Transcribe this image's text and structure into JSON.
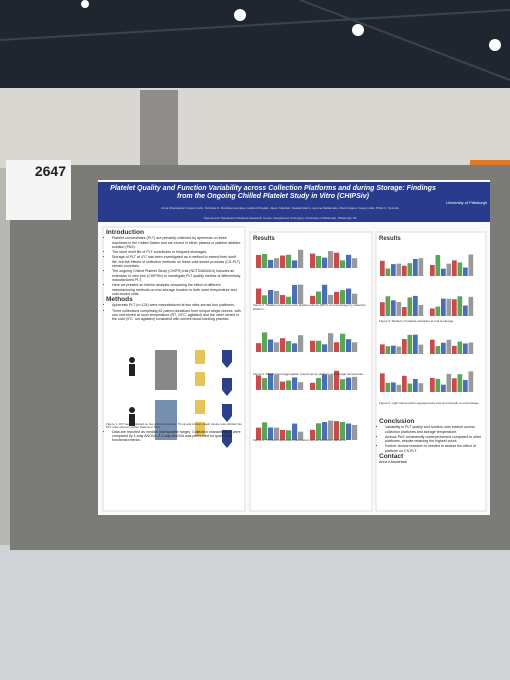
{
  "sign": {
    "number": "2647"
  },
  "poster": {
    "title": "Platelet Quality and Function Variability across Collection Platforms and during Storage: Findings from the Ongoing Chilled Platelet Study in Vitro (CHIPSiv)",
    "institution": "University of Pittsburgh",
    "authors": "Anna Khandelwal, Kaiyan Kahn, Nicholas S. Ruzicka-Gonzales, Latifa Al Khalaki, Jason Sheinkin, Natalia Martin, Jerome Maldonado, Mark Cappel, Casey Holst, Philip C. Spinella",
    "affiliations": "Trauma and Transfusion Medicine Research Center, Department of Surgery, University of Pittsburgh, Pittsburgh, PA",
    "intro": {
      "heading": "Introduction",
      "bullets": [
        "Platelet concentrates (PLT) are primarily collected by apheresis on three machines in the United States and are stored in either plasma or platelet additive solution (PAS).",
        "The short shelf life of PLT contributes to frequent shortages.",
        "Storage of PLT at 4°C has been investigated as a method to extend their shelf life, but the effects of collection methods on these cold-stored products (CS-PLT) remain uncertain.",
        "The ongoing Chilled Platelet Study (CHIPS) trial (NCT04834414) includes an extensive in vitro arm (CHIPSiv) to investigate PLT quality metrics of differentially manufactured PLT.",
        "Here we present an interim analysis comparing the effect of different manufacturing methods on end-storage function in both room temperature and cold-stored units."
      ]
    },
    "methods": {
      "heading": "Methods",
      "bullets": [
        "Apheresis PLT (n=124) were manufactured at two sites across four platforms.",
        "Three collections comprising 62 paired donations from unique single donors, with one unit stored at room temperature (RT, 20°C, agitated) and the other stored in the cold (4°C, not agitated) consistent with current blood banking practice."
      ],
      "caption": "Figure 1. PLT were collected on two different devices: Trima and Amicus. Each device was divided into PLT units stored in either plasma or PAS.",
      "bullets2": [
        "Data are reported as median (interquartile range). Collection characteristics were compared by 1-way ANOVA. A 2-way ANOVA was performed for quality and functional metrics."
      ]
    },
    "results": [
      {
        "heading": "Results",
        "captions": [
          "Figure 2. Platelet count and mean platelet volume (MPV) at end-storage by collection platform.",
          "Figure 3. Whole-blood aggregation responses by platform and storage temperature.",
          "Figure 4. Thrombin generation parameters across collection platforms."
        ]
      },
      {
        "heading": "Results",
        "captions": [
          "Figure 5. Markers of platelet activation at end of storage.",
          "Figure 6. Light transmission aggregometry and clot strength at end-storage."
        ]
      }
    ],
    "conclusion": {
      "heading": "Conclusion",
      "bullets": [
        "Variability in PLT quality and function was evident across collection platforms and storage temperature.",
        "Amicus PAS consistently underperformed compared to other platforms, despite retaining the highest count.",
        "Further clinical research is needed to assess the effect of platform on CS-PLT."
      ]
    },
    "contact": {
      "heading": "Contact",
      "text": "Anna Khandelwal"
    }
  }
}
